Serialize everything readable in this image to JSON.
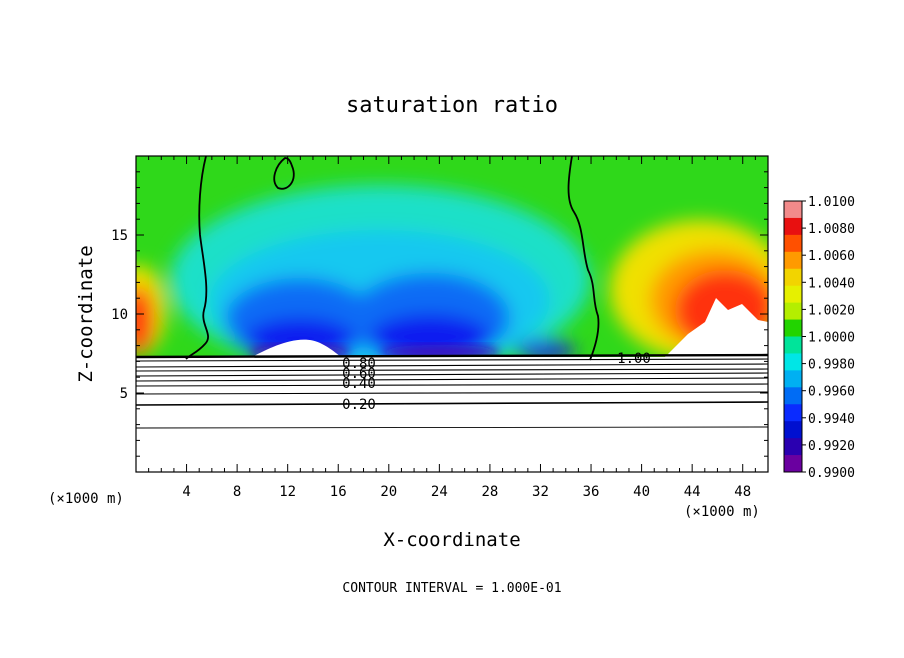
{
  "chart_data": {
    "type": "heatmap",
    "title": "saturation ratio",
    "xlabel": "X-coordinate",
    "ylabel": "Z-coordinate",
    "x_unit_left": "(×1000 m)",
    "x_unit_right": "(×1000 m)",
    "footer": "CONTOUR INTERVAL = 1.000E-01",
    "xlim": [
      0,
      50
    ],
    "ylim": [
      0,
      20
    ],
    "x_ticks": [
      4,
      8,
      12,
      16,
      20,
      24,
      28,
      32,
      36,
      40,
      44,
      48
    ],
    "y_ticks": [
      5,
      10,
      15
    ],
    "colorbar": {
      "labels": [
        "1.0100",
        "1.0080",
        "1.0060",
        "1.0040",
        "1.0020",
        "1.0000",
        "0.9980",
        "0.9960",
        "0.9940",
        "0.9920",
        "0.9900"
      ],
      "values": [
        1.01,
        1.008,
        1.006,
        1.004,
        1.002,
        1.0,
        0.998,
        0.996,
        0.994,
        0.992,
        0.99
      ],
      "colors": [
        "#f28a8a",
        "#e81010",
        "#ff5000",
        "#ff9a00",
        "#f2d400",
        "#e6f000",
        "#b4ee00",
        "#22d400",
        "#00e49a",
        "#00e6e6",
        "#00b0f2",
        "#006cf5",
        "#0a2bff",
        "#0010d0",
        "#2a00b0",
        "#6a00a0"
      ]
    },
    "contour_labels": [
      "0.20",
      "0.40",
      "0.60",
      "0.80",
      "1.00"
    ],
    "contour_levels": [
      0.2,
      0.4,
      0.6,
      0.8,
      1.0
    ]
  }
}
